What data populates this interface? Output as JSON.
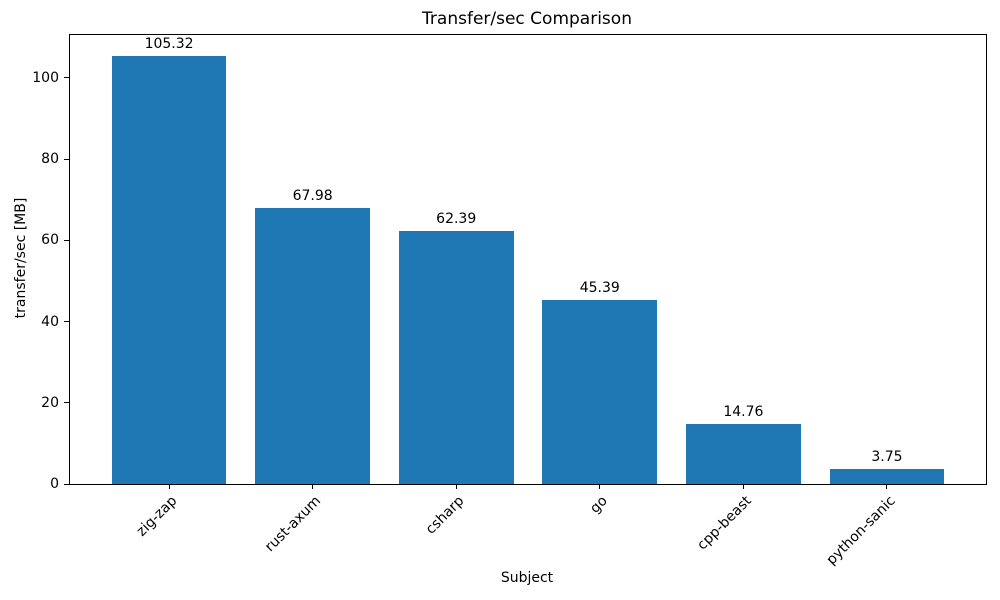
{
  "chart_data": {
    "type": "bar",
    "title": "Transfer/sec Comparison",
    "xlabel": "Subject",
    "ylabel": "transfer/sec [MB]",
    "categories": [
      "zig-zap",
      "rust-axum",
      "csharp",
      "go",
      "cpp-beast",
      "python-sanic"
    ],
    "values": [
      105.32,
      67.98,
      62.39,
      45.39,
      14.76,
      3.75
    ],
    "value_labels": [
      "105.32",
      "67.98",
      "62.39",
      "45.39",
      "14.76",
      "3.75"
    ],
    "yticks": [
      0,
      20,
      40,
      60,
      80,
      100
    ],
    "ylim": [
      0,
      110.59
    ],
    "xlim": [
      -0.69,
      5.69
    ],
    "bar_width": 0.8,
    "bar_color": "#1f77b4",
    "axis_color": "#000000",
    "grid": false,
    "legend": "none",
    "x_tick_rotation_deg": 45
  }
}
